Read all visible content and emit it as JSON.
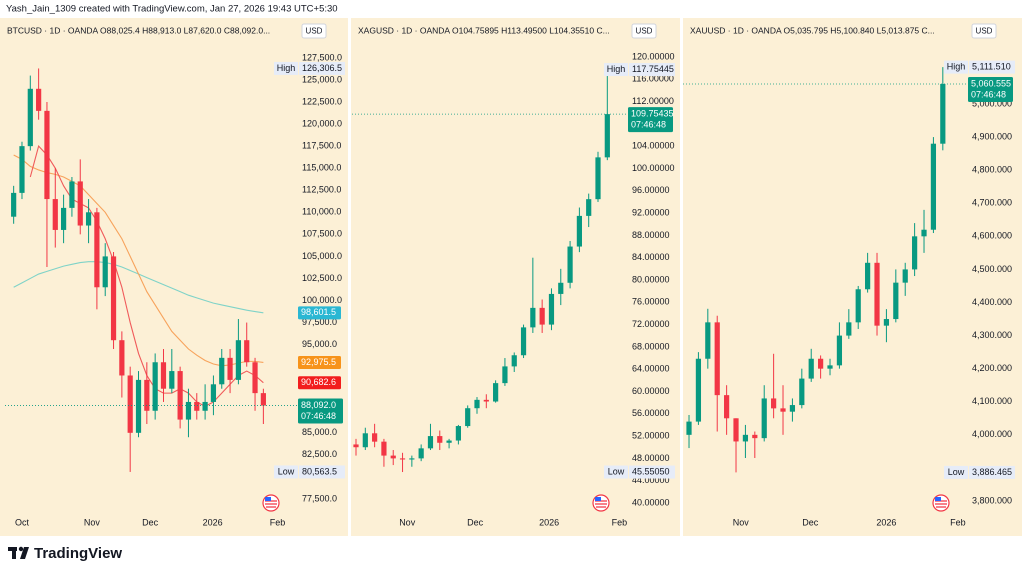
{
  "credit": "Yash_Jain_1309 created with TradingView.com, Jan 27, 2026 19:43 UTC+5:30",
  "footer": "TradingView",
  "chart_data": [
    {
      "type": "candlestick",
      "title": "BTCUSD · 1D · OANDA  O88,025.4  H88,913.0  L87,620.0  C88,092.0...",
      "currency": "USD",
      "up_color": "#089981",
      "down_color": "#f23645",
      "xlim": [
        -1.04,
        33.8
      ],
      "xticks": [
        {
          "value": 1.0,
          "label": "Oct"
        },
        {
          "value": 9.4,
          "label": "Nov"
        },
        {
          "value": 16.4,
          "label": "Dec"
        },
        {
          "value": 23.9,
          "label": "2026"
        },
        {
          "value": 31.7,
          "label": "Feb"
        }
      ],
      "ylim": [
        76250,
        131800
      ],
      "yticks": [
        {
          "value": 127500,
          "label": "127,500.0"
        },
        {
          "value": 125000,
          "label": "125,000.0"
        },
        {
          "value": 122500,
          "label": "122,500.0"
        },
        {
          "value": 120000,
          "label": "120,000.0"
        },
        {
          "value": 117500,
          "label": "117,500.0"
        },
        {
          "value": 115000,
          "label": "115,000.0"
        },
        {
          "value": 112500,
          "label": "112,500.0"
        },
        {
          "value": 110000,
          "label": "110,000.0"
        },
        {
          "value": 107500,
          "label": "107,500.0"
        },
        {
          "value": 105000,
          "label": "105,000.0"
        },
        {
          "value": 102500,
          "label": "102,500.0"
        },
        {
          "value": 100000,
          "label": "100,000.0"
        },
        {
          "value": 97500,
          "label": "97,500.0"
        },
        {
          "value": 95000,
          "label": "95,000.0"
        },
        {
          "value": 85000,
          "label": "85,000.0"
        },
        {
          "value": 82500,
          "label": "82,500.0"
        },
        {
          "value": 77500,
          "label": "77,500.0"
        }
      ],
      "candles": {
        "open": [
          109500,
          112200,
          117500,
          124000,
          121500,
          111500,
          108000,
          110500,
          113500,
          108500,
          110000,
          101500,
          105000,
          95500,
          91500,
          85000,
          91000,
          87500,
          93000,
          90000,
          92000,
          86500,
          88500,
          87500,
          88500,
          90500,
          93500,
          91000,
          95500,
          93000,
          89500
        ],
        "high": [
          113000,
          118000,
          125500,
          126306.5,
          122500,
          115000,
          112000,
          114000,
          116000,
          111500,
          110500,
          106500,
          105500,
          96500,
          92500,
          92000,
          93000,
          94000,
          94500,
          94500,
          92500,
          90000,
          89500,
          90500,
          91500,
          94500,
          94500,
          97900,
          97500,
          93500,
          90000
        ],
        "low": [
          108700,
          111500,
          117000,
          120500,
          103800,
          106000,
          106500,
          109500,
          107500,
          106500,
          99000,
          100500,
          94500,
          89000,
          80563.5,
          84500,
          86000,
          86500,
          88500,
          89500,
          85500,
          84500,
          86500,
          86500,
          87000,
          90000,
          89500,
          90500,
          92500,
          87500,
          86000
        ],
        "close": [
          112200,
          117500,
          124000,
          121500,
          111500,
          108000,
          110500,
          113500,
          108500,
          110000,
          101500,
          105000,
          95500,
          91500,
          85000,
          91000,
          87500,
          93000,
          90000,
          92000,
          86500,
          88500,
          87500,
          88500,
          90500,
          93500,
          91000,
          95500,
          93000,
          89500,
          88092.0
        ]
      },
      "series": [
        {
          "color": "#7fd3c8",
          "values": [
            101500,
            102000,
            102500,
            103000,
            103300,
            103600,
            103900,
            104100,
            104300,
            104400,
            104400,
            104300,
            104100,
            103800,
            103400,
            103000,
            102600,
            102200,
            101800,
            101400,
            101000,
            100600,
            100300,
            100000,
            99700,
            99500,
            99300,
            99100,
            98900,
            98750,
            98601.5
          ]
        },
        {
          "color": "#f7a35c",
          "values": [
            116500,
            116000,
            115200,
            114800,
            114500,
            114300,
            114000,
            113500,
            113000,
            112000,
            111000,
            110000,
            108500,
            107000,
            105000,
            103000,
            101000,
            99500,
            98000,
            96500,
            95500,
            94500,
            93800,
            93200,
            92800,
            92600,
            92700,
            92900,
            93100,
            93100,
            92975.5
          ]
        },
        {
          "color": "#f05a5a",
          "values": [
            null,
            null,
            114000,
            117500,
            116500,
            115000,
            113000,
            111500,
            111000,
            110500,
            109000,
            107000,
            104500,
            101500,
            97500,
            94000,
            91500,
            90000,
            89500,
            89500,
            90000,
            89500,
            88500,
            88000,
            88500,
            89500,
            90500,
            91500,
            92000,
            91500,
            90682.6
          ]
        }
      ],
      "price_tags": [
        {
          "value": 98601.5,
          "label": "98,601.5",
          "color": "#2ab7d3"
        },
        {
          "value": 92975.5,
          "label": "92,975.5",
          "color": "#f7931a"
        },
        {
          "value": 90682.6,
          "label": "90,682.6",
          "color": "#f21d1d"
        }
      ],
      "last_price": {
        "value": 88092.0,
        "label": "88,092.0",
        "countdown": "07:46:48",
        "color": "#089981"
      },
      "markers": [
        {
          "name": "High",
          "value": 126306.5,
          "label": "126,306.5"
        },
        {
          "name": "Low",
          "value": 80563.5,
          "label": "80,563.5"
        }
      ]
    },
    {
      "type": "candlestick",
      "title": "XAGUSD · 1D · OANDA  O104.75895  H113.49500  L104.35510  C...",
      "currency": "USD",
      "up_color": "#089981",
      "down_color": "#f23645",
      "xlim": [
        -0.43,
        28.9
      ],
      "xticks": [
        {
          "value": 5.5,
          "label": "Nov"
        },
        {
          "value": 12.8,
          "label": "Dec"
        },
        {
          "value": 20.75,
          "label": "2026"
        },
        {
          "value": 28.3,
          "label": "Feb"
        }
      ],
      "ylim": [
        38.74,
        126.64
      ],
      "yticks": [
        {
          "value": 120,
          "label": "120.00000"
        },
        {
          "value": 116,
          "label": "116.00000"
        },
        {
          "value": 112,
          "label": "112.00000"
        },
        {
          "value": 104,
          "label": "104.00000"
        },
        {
          "value": 100,
          "label": "100.00000"
        },
        {
          "value": 96,
          "label": "96.00000"
        },
        {
          "value": 92,
          "label": "92.00000"
        },
        {
          "value": 88,
          "label": "88.00000"
        },
        {
          "value": 84,
          "label": "84.00000"
        },
        {
          "value": 80,
          "label": "80.00000"
        },
        {
          "value": 76,
          "label": "76.00000"
        },
        {
          "value": 72,
          "label": "72.00000"
        },
        {
          "value": 68,
          "label": "68.00000"
        },
        {
          "value": 64,
          "label": "64.00000"
        },
        {
          "value": 60,
          "label": "60.00000"
        },
        {
          "value": 56,
          "label": "56.00000"
        },
        {
          "value": 52,
          "label": "52.00000"
        },
        {
          "value": 48,
          "label": "48.00000"
        },
        {
          "value": 44,
          "label": "44.00000"
        },
        {
          "value": 40,
          "label": "40.00000"
        }
      ],
      "candles": {
        "open": [
          50.5,
          50.0,
          52.5,
          51.0,
          48.5,
          48.0,
          47.8,
          48.0,
          49.8,
          52.0,
          50.8,
          51.2,
          53.8,
          57.0,
          58.5,
          58.2,
          61.5,
          64.5,
          66.5,
          71.5,
          75.0,
          72.0,
          77.5,
          79.5,
          86.0,
          91.5,
          94.5,
          102.0
        ],
        "high": [
          51.5,
          53.5,
          54.2,
          51.5,
          49.5,
          49.0,
          48.5,
          50.5,
          54.2,
          53.0,
          51.5,
          54.0,
          57.5,
          59.0,
          59.5,
          62.0,
          66.0,
          67.0,
          72.0,
          84.0,
          76.5,
          78.5,
          82.0,
          87.0,
          93.0,
          95.5,
          103.0,
          117.75445
        ],
        "low": [
          48.5,
          49.5,
          50.0,
          46.5,
          46.8,
          45.5505,
          46.5,
          47.5,
          49.5,
          49.5,
          49.8,
          50.5,
          53.5,
          56.0,
          57.0,
          58.0,
          61.0,
          63.5,
          66.0,
          70.5,
          70.5,
          71.0,
          75.5,
          78.5,
          85.0,
          89.5,
          94.0,
          101.5
        ],
        "close": [
          50.0,
          52.5,
          51.0,
          48.5,
          48.0,
          47.8,
          48.0,
          49.8,
          52.0,
          50.8,
          51.2,
          53.8,
          57.0,
          58.5,
          58.2,
          61.5,
          64.5,
          66.5,
          71.5,
          75.0,
          72.0,
          77.5,
          79.5,
          86.0,
          91.5,
          94.5,
          102.0,
          109.75435
        ]
      },
      "last_price": {
        "value": 109.75435,
        "label": "109.75435",
        "countdown": "07:46:48",
        "color": "#089981"
      },
      "markers": [
        {
          "name": "High",
          "value": 117.75445,
          "label": "117.75445"
        },
        {
          "name": "Low",
          "value": 45.5505,
          "label": "45.55050"
        }
      ]
    },
    {
      "type": "candlestick",
      "title": "XAUUSD · 1D · OANDA  O5,035.795  H5,100.840  L5,013.875  C...",
      "currency": "USD",
      "up_color": "#089981",
      "down_color": "#f23645",
      "xlim": [
        -0.64,
        29.36
      ],
      "xticks": [
        {
          "value": 5.5,
          "label": "Nov"
        },
        {
          "value": 12.9,
          "label": "Dec"
        },
        {
          "value": 21.0,
          "label": "2026"
        },
        {
          "value": 28.6,
          "label": "Feb"
        }
      ],
      "ylim": [
        3772.8,
        5253.9
      ],
      "yticks": [
        {
          "value": 5000,
          "label": "5,000.000"
        },
        {
          "value": 4900,
          "label": "4,900.000"
        },
        {
          "value": 4800,
          "label": "4,800.000"
        },
        {
          "value": 4700,
          "label": "4,700.000"
        },
        {
          "value": 4600,
          "label": "4,600.000"
        },
        {
          "value": 4500,
          "label": "4,500.000"
        },
        {
          "value": 4400,
          "label": "4,400.000"
        },
        {
          "value": 4300,
          "label": "4,300.000"
        },
        {
          "value": 4200,
          "label": "4,200.000"
        },
        {
          "value": 4100,
          "label": "4,100.000"
        },
        {
          "value": 4000,
          "label": "4,000.000"
        },
        {
          "value": 3800,
          "label": "3,800.000"
        }
      ],
      "candles": {
        "open": [
          4000,
          4040,
          4230,
          4340,
          4120,
          4050,
          3980,
          4000,
          3990,
          4110,
          4080,
          4070,
          4090,
          4170,
          4230,
          4200,
          4210,
          4300,
          4340,
          4440,
          4520,
          4330,
          4350,
          4460,
          4500,
          4600,
          4620,
          4880
        ],
        "high": [
          4060,
          4250,
          4381,
          4360,
          4150,
          4050,
          4030,
          4010,
          4150,
          4245,
          4150,
          4110,
          4200,
          4260,
          4240,
          4230,
          4340,
          4380,
          4450,
          4550,
          4550,
          4380,
          4500,
          4520,
          4640,
          4680,
          4900,
          5111.51
        ],
        "low": [
          3960,
          4030,
          4200,
          4010,
          4000,
          3886.465,
          3930,
          3930,
          3980,
          4050,
          4000,
          4040,
          4080,
          4160,
          4170,
          4180,
          4200,
          4290,
          4320,
          4430,
          4300,
          4280,
          4340,
          4420,
          4480,
          4550,
          4610,
          4860
        ],
        "close": [
          4040,
          4230,
          4340,
          4120,
          4050,
          3980,
          4000,
          3990,
          4110,
          4080,
          4070,
          4090,
          4170,
          4230,
          4200,
          4210,
          4300,
          4340,
          4440,
          4520,
          4330,
          4350,
          4460,
          4500,
          4600,
          4620,
          4880,
          5060.555
        ]
      },
      "last_price": {
        "value": 5060.555,
        "label": "5,060.555",
        "countdown": "07:46:48",
        "color": "#089981"
      },
      "markers": [
        {
          "name": "High",
          "value": 5111.51,
          "label": "5,111.510"
        },
        {
          "name": "Low",
          "value": 3886.465,
          "label": "3,886.465"
        }
      ]
    }
  ]
}
